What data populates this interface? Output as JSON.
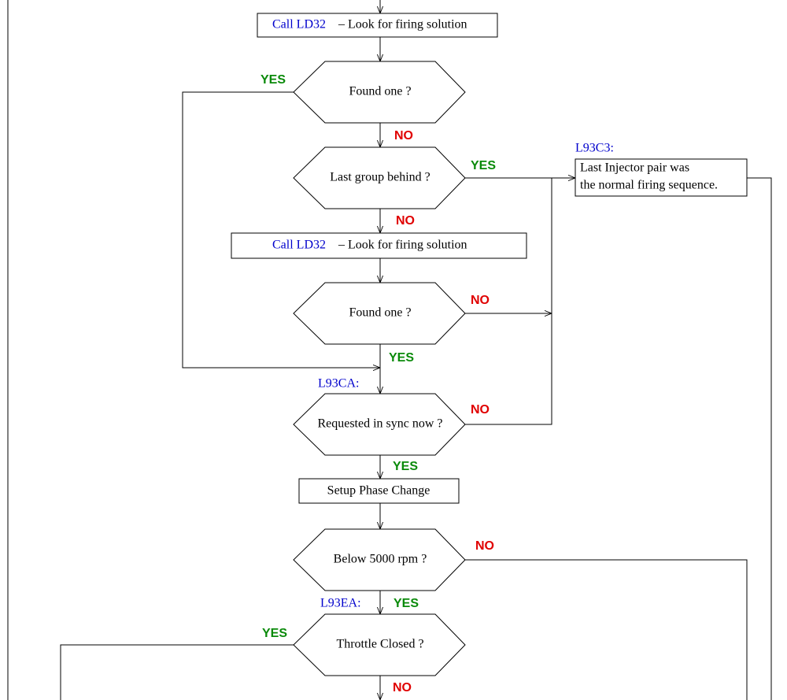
{
  "boxes": [
    {
      "call": "Call LD32",
      "text": "– Look for firing solution"
    },
    {
      "call": "Call LD32",
      "text": "– Look for firing solution"
    },
    {
      "text": "Setup Phase Change"
    },
    {
      "label": "L93C3:",
      "lines": [
        "Last Injector pair was",
        "the normal firing sequence."
      ]
    }
  ],
  "decisions": [
    {
      "text": "Found one ?",
      "yes": "YES",
      "no": "NO"
    },
    {
      "text": "Last group behind ?",
      "yes": "YES",
      "no": "NO"
    },
    {
      "text": "Found one ?",
      "yes": "YES",
      "no": "NO"
    },
    {
      "text": "Requested in sync now ?",
      "yes": "YES",
      "no": "NO"
    },
    {
      "text": "Below 5000 rpm ?",
      "yes": "YES",
      "no": "NO"
    },
    {
      "text": "Throttle Closed ?",
      "yes": "YES",
      "no": "NO"
    }
  ],
  "addresses": [
    "L93CA:",
    "L93EA:"
  ]
}
